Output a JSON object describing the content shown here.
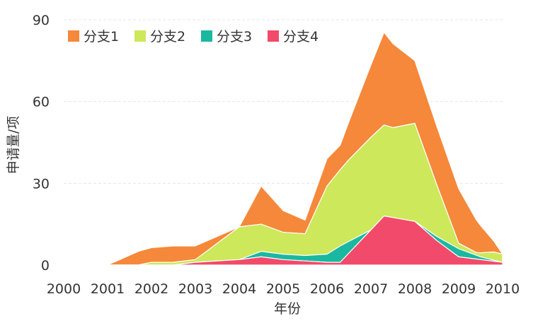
{
  "chart_data": {
    "type": "area",
    "stacked": true,
    "xlabel": "年份",
    "ylabel": "申请量/项",
    "ylim": [
      0,
      90
    ],
    "yticks": [
      0,
      30,
      60,
      90
    ],
    "xticks": [
      2000,
      2001,
      2002,
      2003,
      2004,
      2005,
      2006,
      2007,
      2008,
      2009,
      2010
    ],
    "legend_position": "top-left",
    "grid": true,
    "series": [
      {
        "name": "分支1",
        "color": "#f5883a",
        "points": [
          [
            2001,
            0
          ],
          [
            2001.7,
            5
          ],
          [
            2002.5,
            6
          ],
          [
            2003,
            5
          ],
          [
            2004,
            0
          ],
          [
            2004.5,
            14
          ],
          [
            2005,
            8
          ],
          [
            2005.5,
            5
          ],
          [
            2006,
            10
          ],
          [
            2006.3,
            9
          ],
          [
            2007.3,
            34
          ],
          [
            2008,
            23
          ],
          [
            2009,
            20
          ],
          [
            2009.8,
            4
          ]
        ]
      },
      {
        "name": "分支2",
        "color": "#cde85a",
        "points": [
          [
            2002,
            1
          ],
          [
            2003,
            1
          ],
          [
            2004,
            12
          ],
          [
            2005,
            8
          ],
          [
            2005.5,
            8
          ],
          [
            2006,
            25
          ],
          [
            2006.5,
            30
          ],
          [
            2007,
            34
          ],
          [
            2007.5,
            33
          ],
          [
            2008,
            36
          ],
          [
            2009,
            2
          ],
          [
            2009.4,
            1
          ],
          [
            2009.8,
            3
          ],
          [
            2010,
            3
          ]
        ]
      },
      {
        "name": "分支3",
        "color": "#1ab8a0",
        "points": [
          [
            2002.8,
            0
          ],
          [
            2004,
            0
          ],
          [
            2004.5,
            2
          ],
          [
            2005.5,
            2
          ],
          [
            2006,
            3
          ],
          [
            2006.3,
            6
          ],
          [
            2007,
            0
          ],
          [
            2008,
            0
          ],
          [
            2009,
            3
          ],
          [
            2009.5,
            1
          ],
          [
            2010,
            0
          ]
        ]
      },
      {
        "name": "分支4",
        "color": "#f24a6a",
        "points": [
          [
            2002.5,
            0
          ],
          [
            2003,
            1
          ],
          [
            2004,
            2
          ],
          [
            2004.5,
            3
          ],
          [
            2005,
            2
          ],
          [
            2006,
            1
          ],
          [
            2006.3,
            1
          ],
          [
            2007.3,
            18
          ],
          [
            2008,
            16
          ],
          [
            2008.5,
            9
          ],
          [
            2009,
            3
          ],
          [
            2010,
            1
          ]
        ]
      }
    ]
  }
}
